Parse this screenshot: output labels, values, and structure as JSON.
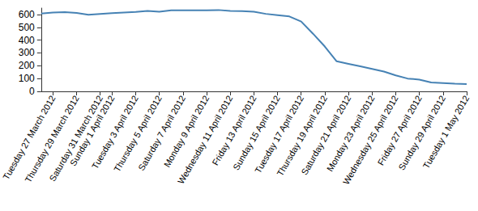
{
  "chart_data": {
    "type": "line",
    "categories": [
      null,
      "Tuesday 27 March 2012",
      null,
      "Thursday 29 March 2012",
      null,
      "Saturday 31 March 2012",
      "Sunday 1 April 2012",
      null,
      "Tuesday 3 April 2012",
      null,
      "Thursday 5 April 2012",
      null,
      "Saturday 7 April 2012",
      null,
      "Monday 9 April 2012",
      null,
      "Wednesday 11 April 2012",
      null,
      "Friday 13 April 2012",
      null,
      "Sunday 15 April 2012",
      null,
      "Tuesday 17 April 2012",
      null,
      "Thursday 19 April 2012",
      null,
      "Saturday 21 April 2012",
      null,
      "Monday 23 April 2012",
      null,
      "Wednesday 25 April 2012",
      null,
      "Friday 27 April 2012",
      null,
      "Sunday 29 April 2012",
      null,
      "Tuesday 1 May 2012"
    ],
    "values": [
      608,
      615,
      618,
      612,
      598,
      605,
      610,
      615,
      620,
      628,
      622,
      632,
      633,
      632,
      633,
      635,
      628,
      626,
      622,
      605,
      595,
      585,
      545,
      450,
      350,
      235,
      215,
      195,
      175,
      155,
      125,
      100,
      92,
      70,
      65,
      60,
      57
    ],
    "color": "#4682b4",
    "ylim": [
      0,
      650
    ],
    "yticks": [
      0,
      100,
      200,
      300,
      400,
      500,
      600
    ],
    "grid": false
  }
}
